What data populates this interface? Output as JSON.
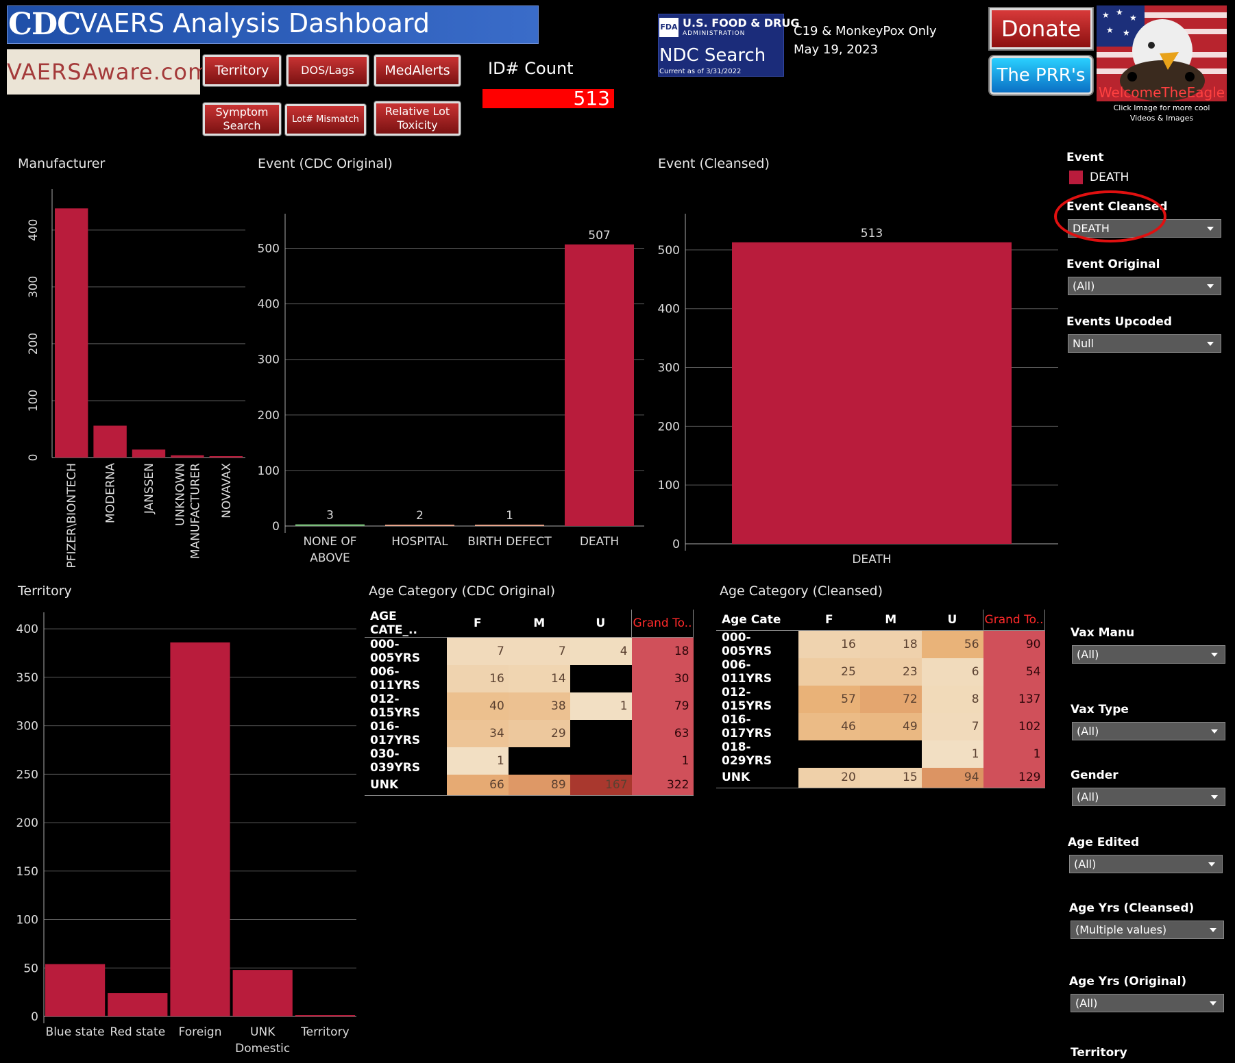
{
  "header": {
    "cdc_logo": "CDC",
    "title": "VAERS Analysis Dashboard",
    "site": "VAERSAware.com",
    "nav": [
      "Territory",
      "DOS/Lags",
      "MedAlerts",
      "Symptom Search",
      "Lot# Mismatch",
      "Relative Lot Toxicity"
    ],
    "idcount_label": "ID# Count",
    "idcount_value": "513",
    "fda_badge": "FDA",
    "fda_line1": "U.S. FOOD & DRUG",
    "fda_line2": "ADMINISTRATION",
    "fda_ndc": "NDC Search",
    "fda_current": "Current as of 3/31/2022",
    "c19_line1": "C19 & MonkeyPox Only",
    "c19_line2": "May 19, 2023",
    "donate": "Donate",
    "prr": "The PRR's",
    "eagle_text": "WelcomeTheEagle",
    "eagle_caption_1": "Click Image for more cool",
    "eagle_caption_2": "Videos & Images"
  },
  "colors": {
    "bar": "#b91c3c",
    "accent_red": "#ff0000",
    "green_bar": "#7bbd7b",
    "peach_bar": "#e8a48a"
  },
  "chart_data": [
    {
      "id": "manufacturer",
      "type": "bar",
      "title": "Manufacturer",
      "categories": [
        "PFIZER\\BIONTECH",
        "MODERNA",
        "JANSSEN",
        "UNKNOWN MANUFACTURER",
        "NOVAVAX"
      ],
      "values": [
        438,
        56,
        14,
        4,
        2
      ],
      "yticks": [
        "0",
        "100",
        "200",
        "300",
        "400"
      ],
      "ylim": [
        0,
        460
      ]
    },
    {
      "id": "event_original",
      "type": "bar",
      "title": "Event (CDC Original)",
      "categories": [
        "NONE OF ABOVE",
        "HOSPITAL",
        "BIRTH DEFECT",
        "DEATH"
      ],
      "values": [
        3,
        2,
        1,
        507
      ],
      "labels": [
        "3",
        "2",
        "1",
        "507"
      ],
      "yticks": [
        "0",
        "100",
        "200",
        "300",
        "400",
        "500"
      ],
      "ylim": [
        0,
        550
      ]
    },
    {
      "id": "event_cleansed",
      "type": "bar",
      "title": "Event (Cleansed)",
      "categories": [
        "DEATH"
      ],
      "values": [
        513
      ],
      "labels": [
        "513"
      ],
      "yticks": [
        "0",
        "100",
        "200",
        "300",
        "400",
        "500"
      ],
      "ylim": [
        0,
        550
      ]
    },
    {
      "id": "territory",
      "type": "bar",
      "title": "Territory",
      "categories": [
        "Blue state",
        "Red state",
        "Foreign",
        "UNK Domestic",
        "Territory"
      ],
      "values": [
        54,
        24,
        386,
        48,
        1
      ],
      "yticks": [
        "0",
        "50",
        "100",
        "150",
        "200",
        "250",
        "300",
        "350",
        "400"
      ],
      "ylim": [
        0,
        410
      ]
    },
    {
      "id": "age_original",
      "type": "table",
      "title": "Age Category (CDC Original)",
      "columns": [
        "AGE CATE_..",
        "F",
        "M",
        "U",
        "Grand To.."
      ],
      "rows": [
        {
          "label": "000-005YRS",
          "f": "7",
          "m": "7",
          "u": "4",
          "total": "18"
        },
        {
          "label": "006-011YRS",
          "f": "16",
          "m": "14",
          "u": "",
          "total": "30"
        },
        {
          "label": "012-015YRS",
          "f": "40",
          "m": "38",
          "u": "1",
          "total": "79"
        },
        {
          "label": "016-017YRS",
          "f": "34",
          "m": "29",
          "u": "",
          "total": "63"
        },
        {
          "label": "030-039YRS",
          "f": "1",
          "m": "",
          "u": "",
          "total": "1"
        },
        {
          "label": "UNK",
          "f": "66",
          "m": "89",
          "u": "167",
          "total": "322"
        }
      ]
    },
    {
      "id": "age_cleansed",
      "type": "table",
      "title": "Age Category (Cleansed)",
      "columns": [
        "Age Cate",
        "F",
        "M",
        "U",
        "Grand To.."
      ],
      "rows": [
        {
          "label": "000-005YRS",
          "f": "16",
          "m": "18",
          "u": "56",
          "total": "90"
        },
        {
          "label": "006-011YRS",
          "f": "25",
          "m": "23",
          "u": "6",
          "total": "54"
        },
        {
          "label": "012-015YRS",
          "f": "57",
          "m": "72",
          "u": "8",
          "total": "137"
        },
        {
          "label": "016-017YRS",
          "f": "46",
          "m": "49",
          "u": "7",
          "total": "102"
        },
        {
          "label": "018-029YRS",
          "f": "",
          "m": "",
          "u": "1",
          "total": "1"
        },
        {
          "label": "UNK",
          "f": "20",
          "m": "15",
          "u": "94",
          "total": "129"
        }
      ]
    }
  ],
  "filters": {
    "legend_title": "Event",
    "legend_item": "DEATH",
    "items": [
      {
        "label": "Event Cleansed",
        "value": "DEATH"
      },
      {
        "label": "Event Original",
        "value": "(All)"
      },
      {
        "label": "Events Upcoded",
        "value": "Null"
      },
      {
        "label": "Vax Manu",
        "value": "(All)"
      },
      {
        "label": "Vax Type",
        "value": "(All)"
      },
      {
        "label": "Gender",
        "value": "(All)"
      },
      {
        "label": "Age Edited",
        "value": "(All)"
      },
      {
        "label": "Age Yrs (Cleansed)",
        "value": "(Multiple values)"
      },
      {
        "label": "Age Yrs (Original)",
        "value": "(All)"
      }
    ],
    "last_label": "Territory"
  }
}
